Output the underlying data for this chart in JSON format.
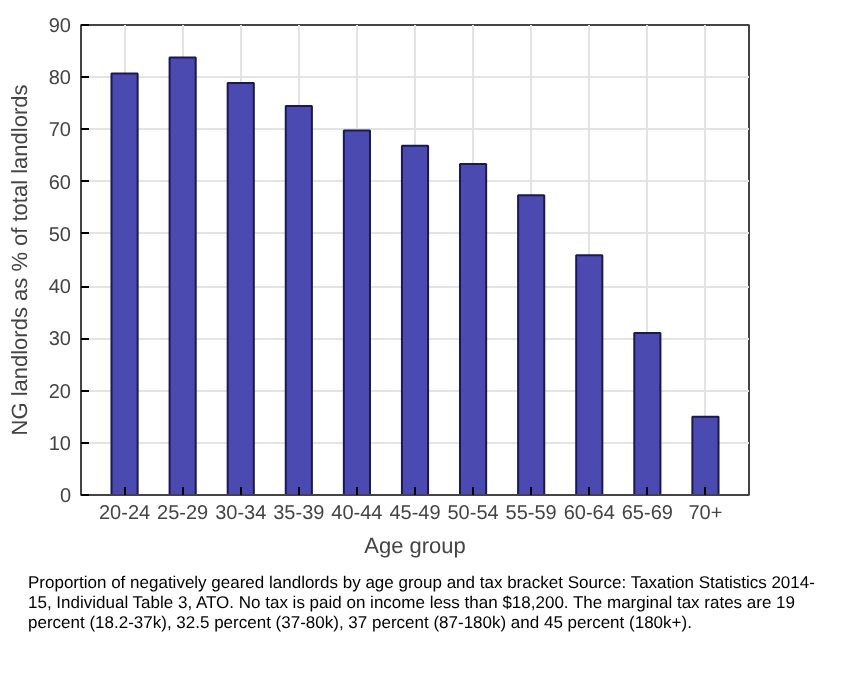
{
  "chart_data": {
    "type": "bar",
    "xlabel": "Age group",
    "ylabel": "NG landlords as % of total landlords",
    "categories": [
      "20-24",
      "25-29",
      "30-34",
      "35-39",
      "40-44",
      "45-49",
      "50-54",
      "55-59",
      "60-64",
      "65-69",
      "70+"
    ],
    "values": [
      80.7,
      83.8,
      78.9,
      74.5,
      69.8,
      66.9,
      63.4,
      57.4,
      45.9,
      31,
      15
    ],
    "color": "#4a4ab0",
    "ylim": [
      0,
      90
    ],
    "yticks": [
      0,
      10,
      20,
      30,
      40,
      50,
      60,
      70,
      80,
      90
    ],
    "grid": true,
    "annotations": [
      "Proportion of negatively geared landlords by age group and tax bracket Source: Taxation Statistics 2014-15, Individual Table 3, ATO. No tax is paid on income less than $18,200. The marginal tax rates are 19 percent (18.2-37k), 32.5 percent (37-80k), 37 percent (87-180k) and 45 percent (180k+)."
    ]
  }
}
